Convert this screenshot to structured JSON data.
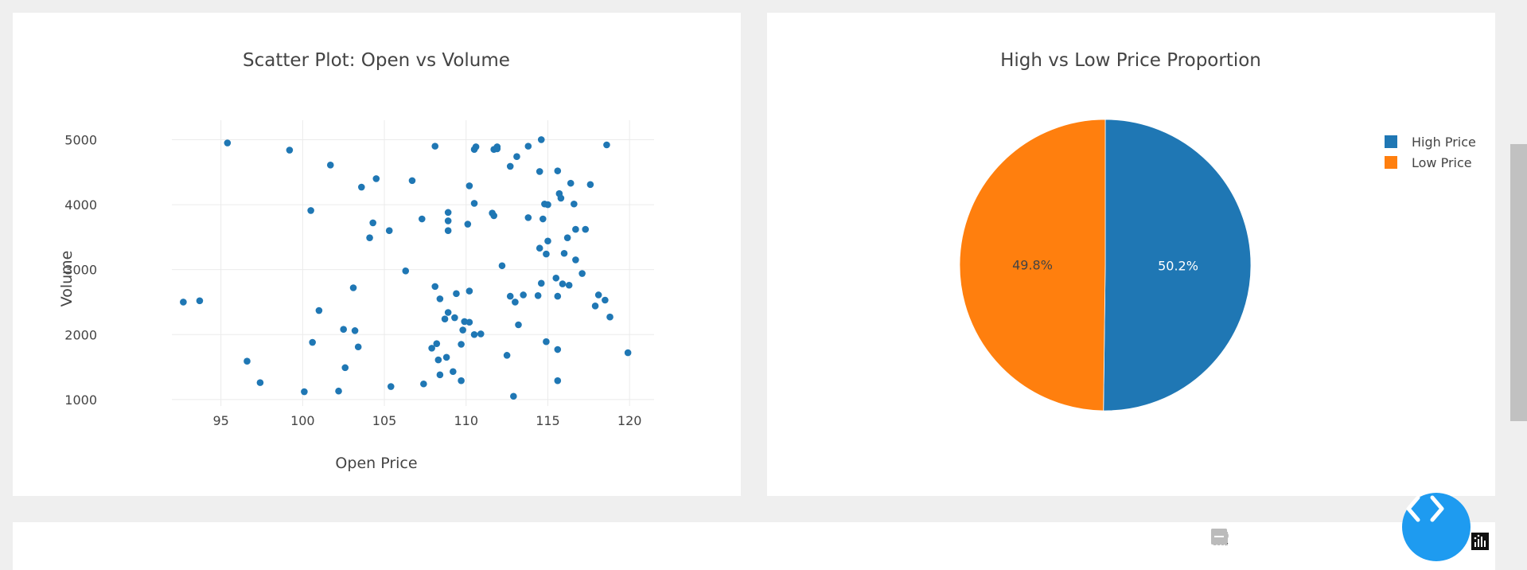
{
  "chart_data": [
    {
      "type": "scatter",
      "title": "Scatter Plot: Open vs Volume",
      "xlabel": "Open Price",
      "ylabel": "Volume",
      "xlim": [
        92,
        121.5
      ],
      "ylim": [
        900,
        5300
      ],
      "xticks": [
        95,
        100,
        105,
        110,
        115,
        120
      ],
      "yticks": [
        1000,
        2000,
        3000,
        4000,
        5000
      ],
      "grid": true,
      "color": "#1f77b4",
      "series": [
        {
          "points": [
            [
              92.7,
              2500
            ],
            [
              93.7,
              2520
            ],
            [
              95.4,
              4950
            ],
            [
              96.6,
              1590
            ],
            [
              97.4,
              1260
            ],
            [
              99.2,
              4840
            ],
            [
              100.1,
              1120
            ],
            [
              100.5,
              3910
            ],
            [
              100.6,
              1880
            ],
            [
              101.0,
              2370
            ],
            [
              101.7,
              4610
            ],
            [
              102.2,
              1130
            ],
            [
              102.5,
              2080
            ],
            [
              102.6,
              1490
            ],
            [
              103.1,
              2720
            ],
            [
              103.2,
              2060
            ],
            [
              103.4,
              1810
            ],
            [
              103.6,
              4270
            ],
            [
              104.1,
              3490
            ],
            [
              104.3,
              3720
            ],
            [
              104.5,
              4400
            ],
            [
              105.3,
              3600
            ],
            [
              105.4,
              1200
            ],
            [
              106.3,
              2980
            ],
            [
              106.7,
              4370
            ],
            [
              107.3,
              3780
            ],
            [
              107.4,
              1240
            ],
            [
              107.9,
              1790
            ],
            [
              108.1,
              2740
            ],
            [
              108.1,
              4900
            ],
            [
              108.2,
              1860
            ],
            [
              108.3,
              1610
            ],
            [
              108.4,
              2550
            ],
            [
              108.4,
              1380
            ],
            [
              108.7,
              2240
            ],
            [
              108.8,
              1650
            ],
            [
              108.9,
              2340
            ],
            [
              108.9,
              3880
            ],
            [
              108.9,
              3750
            ],
            [
              108.9,
              3600
            ],
            [
              109.2,
              1430
            ],
            [
              109.3,
              2260
            ],
            [
              109.4,
              2630
            ],
            [
              109.7,
              1850
            ],
            [
              109.7,
              1290
            ],
            [
              109.8,
              2070
            ],
            [
              109.9,
              2200
            ],
            [
              110.1,
              3700
            ],
            [
              110.2,
              2670
            ],
            [
              110.2,
              4290
            ],
            [
              110.2,
              2190
            ],
            [
              110.5,
              4020
            ],
            [
              110.5,
              2000
            ],
            [
              110.5,
              4850
            ],
            [
              110.6,
              4890
            ],
            [
              110.9,
              2010
            ],
            [
              111.6,
              3870
            ],
            [
              111.7,
              3830
            ],
            [
              111.7,
              4850
            ],
            [
              111.9,
              4890
            ],
            [
              111.9,
              4860
            ],
            [
              112.2,
              3060
            ],
            [
              112.5,
              1680
            ],
            [
              112.7,
              4590
            ],
            [
              112.7,
              2590
            ],
            [
              112.9,
              1050
            ],
            [
              113.0,
              2500
            ],
            [
              113.1,
              4740
            ],
            [
              113.2,
              2150
            ],
            [
              113.5,
              2610
            ],
            [
              113.8,
              4900
            ],
            [
              113.8,
              3800
            ],
            [
              114.4,
              2600
            ],
            [
              114.5,
              4510
            ],
            [
              114.5,
              3330
            ],
            [
              114.6,
              5000
            ],
            [
              114.6,
              2790
            ],
            [
              114.7,
              3780
            ],
            [
              114.8,
              4010
            ],
            [
              114.9,
              3240
            ],
            [
              114.9,
              1890
            ],
            [
              115.0,
              4000
            ],
            [
              115.0,
              3440
            ],
            [
              115.5,
              2870
            ],
            [
              115.6,
              4520
            ],
            [
              115.6,
              2590
            ],
            [
              115.6,
              1770
            ],
            [
              115.6,
              1290
            ],
            [
              115.7,
              4170
            ],
            [
              115.8,
              4100
            ],
            [
              115.9,
              2780
            ],
            [
              116.0,
              3250
            ],
            [
              116.2,
              3490
            ],
            [
              116.3,
              2760
            ],
            [
              116.4,
              4330
            ],
            [
              116.6,
              4010
            ],
            [
              116.7,
              3620
            ],
            [
              116.7,
              3150
            ],
            [
              117.1,
              2940
            ],
            [
              117.3,
              3620
            ],
            [
              117.6,
              4310
            ],
            [
              117.9,
              2440
            ],
            [
              118.1,
              2610
            ],
            [
              118.5,
              2530
            ],
            [
              118.6,
              4920
            ],
            [
              118.8,
              2270
            ],
            [
              119.9,
              1720
            ]
          ]
        }
      ]
    },
    {
      "type": "pie",
      "title": "High vs Low Price Proportion",
      "legend_position": "top-right",
      "slices": [
        {
          "label": "High Price",
          "value": 50.2,
          "text": "50.2%",
          "color": "#1f77b4",
          "text_color": "#ffffff"
        },
        {
          "label": "Low Price",
          "value": 49.8,
          "text": "49.8%",
          "color": "#ff7f0e",
          "text_color": "#444444"
        }
      ]
    }
  ],
  "modebar": {
    "icons": [
      "camera-icon",
      "zoom-icon",
      "pan-icon",
      "box-select-icon",
      "lasso-icon",
      "zoom-in-icon",
      "zoom-out-icon"
    ],
    "logo": "plotly-logo-icon"
  },
  "fab": {
    "icon": "code-brackets-icon",
    "color": "#1e9bf0"
  }
}
